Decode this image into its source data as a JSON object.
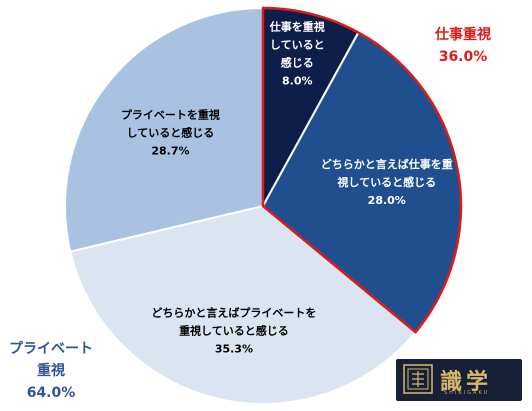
{
  "chart_data": {
    "type": "pie",
    "slices": [
      {
        "lines": [
          "仕事を重視",
          "していると",
          "感じる",
          "8.0%"
        ],
        "value": 8.0,
        "color": "#0e1e4a",
        "label_color": "#ffffff",
        "highlight": true
      },
      {
        "lines": [
          "どちらかと言えば仕事を重",
          "視していると感じる",
          "28.0%"
        ],
        "value": 28.0,
        "color": "#1f4f8f",
        "label_color": "#ffffff",
        "highlight": true
      },
      {
        "lines": [
          "どちらかと言えばプライベートを",
          "重視していると感じる",
          "35.3%"
        ],
        "value": 35.3,
        "color": "#dbe5f1",
        "label_color": "#000000",
        "highlight": false
      },
      {
        "lines": [
          "プライベートを重視",
          "していると感じる",
          "28.7%"
        ],
        "value": 28.7,
        "color": "#a9c2e2",
        "label_color": "#000000",
        "highlight": false
      }
    ],
    "highlight_color": "#e01818",
    "groups": [
      {
        "label": "仕事重視",
        "percent": "36.0%",
        "value": 36.0,
        "color": "#e01818"
      },
      {
        "label": "プライベート重視",
        "label_lines": [
          "プライベート",
          "重視"
        ],
        "percent": "64.0%",
        "value": 64.0,
        "color": "#2f5597"
      }
    ]
  },
  "logo": {
    "text": "識学",
    "sub": "SHIKIGAKU"
  }
}
